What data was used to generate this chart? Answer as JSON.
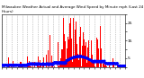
{
  "title": "Milwaukee Weather Actual and Average Wind Speed by Minute mph (Last 24 Hours)",
  "title2": "milwaukee",
  "num_points": 1440,
  "background_color": "#ffffff",
  "bar_color": "#ff0000",
  "line_color": "#0000ff",
  "ylim": [
    0,
    30
  ],
  "ytick_labels": [
    "",
    "5",
    "",
    "15",
    "",
    "25",
    ""
  ],
  "yticks": [
    0,
    5,
    10,
    15,
    20,
    25,
    30
  ],
  "grid_color": "#999999",
  "figsize": [
    1.6,
    0.87
  ],
  "dpi": 100
}
